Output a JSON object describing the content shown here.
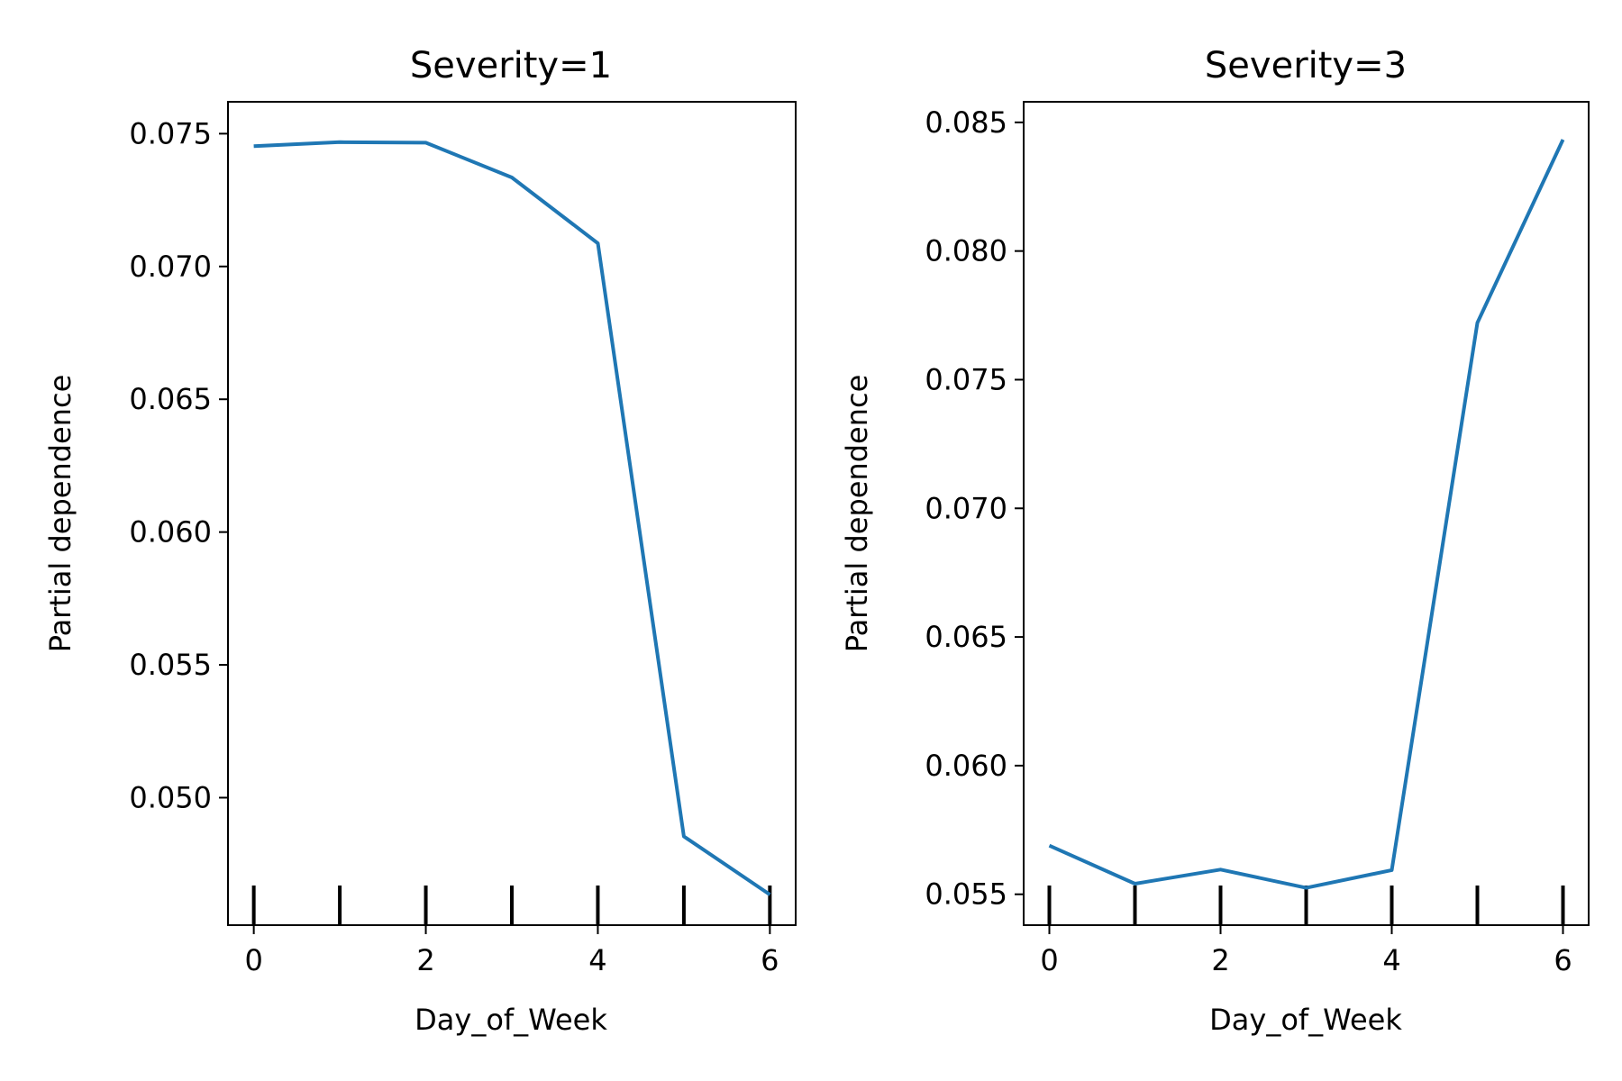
{
  "colors": {
    "line": "#1f77b4",
    "axes": "#000000",
    "background": "#ffffff"
  },
  "chart_data": [
    {
      "type": "line",
      "title": "Severity=1",
      "xlabel": "Day_of_Week",
      "ylabel": "Partial dependence",
      "x": [
        0,
        1,
        2,
        3,
        4,
        5,
        6
      ],
      "series": [
        {
          "values": [
            0.07453,
            0.07468,
            0.07466,
            0.07335,
            0.07087,
            0.04854,
            0.04635
          ]
        }
      ],
      "xlim": [
        -0.3,
        6.3
      ],
      "ylim": [
        0.0452,
        0.0762
      ],
      "xticks": [
        0,
        2,
        4,
        6
      ],
      "xtick_labels": [
        "0",
        "2",
        "4",
        "6"
      ],
      "yticks": [
        0.05,
        0.055,
        0.06,
        0.065,
        0.07,
        0.075
      ],
      "ytick_labels": [
        "0.050",
        "0.055",
        "0.060",
        "0.065",
        "0.070",
        "0.075"
      ],
      "rug_x": [
        0,
        1,
        2,
        3,
        4,
        5,
        6
      ],
      "grid": false,
      "legend": false
    },
    {
      "type": "line",
      "title": "Severity=3",
      "xlabel": "Day_of_Week",
      "ylabel": "Partial dependence",
      "x": [
        0,
        1,
        2,
        3,
        4,
        5,
        6
      ],
      "series": [
        {
          "values": [
            0.05689,
            0.05541,
            0.05596,
            0.05525,
            0.05594,
            0.07721,
            0.08433
          ]
        }
      ],
      "xlim": [
        -0.3,
        6.3
      ],
      "ylim": [
        0.0538,
        0.0858
      ],
      "xticks": [
        0,
        2,
        4,
        6
      ],
      "xtick_labels": [
        "0",
        "2",
        "4",
        "6"
      ],
      "yticks": [
        0.055,
        0.06,
        0.065,
        0.07,
        0.075,
        0.08,
        0.085
      ],
      "ytick_labels": [
        "0.055",
        "0.060",
        "0.065",
        "0.070",
        "0.075",
        "0.080",
        "0.085"
      ],
      "rug_x": [
        0,
        1,
        2,
        3,
        4,
        5,
        6
      ],
      "grid": false,
      "legend": false
    }
  ]
}
